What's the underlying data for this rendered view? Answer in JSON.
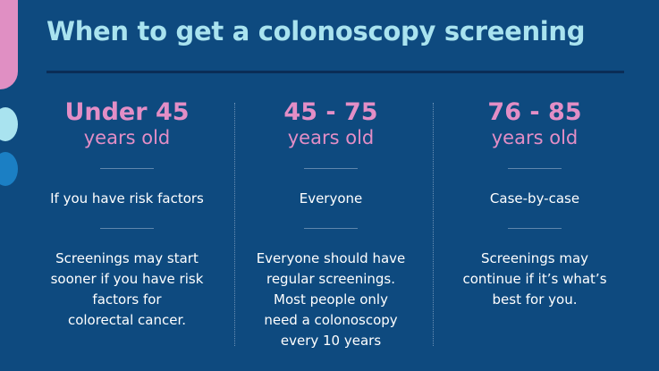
{
  "header": {
    "title": "When to get a colonoscopy screening"
  },
  "columns": [
    {
      "heading": "Under 45",
      "subheading": "years old",
      "audience": "If you have risk factors",
      "description": [
        "Screenings may start",
        "sooner if you have risk",
        "factors for",
        "colorectal cancer."
      ]
    },
    {
      "heading": "45 - 75",
      "subheading": "years old",
      "audience": "Everyone",
      "description": [
        "Everyone should have",
        "regular screenings.",
        "Most people only",
        "need a colonoscopy",
        "every 10 years"
      ]
    },
    {
      "heading": "76 - 85",
      "subheading": "years old",
      "audience": "Case-by-case",
      "description": [
        "Screenings may",
        "continue if it’s what’s",
        "best for you."
      ]
    }
  ]
}
